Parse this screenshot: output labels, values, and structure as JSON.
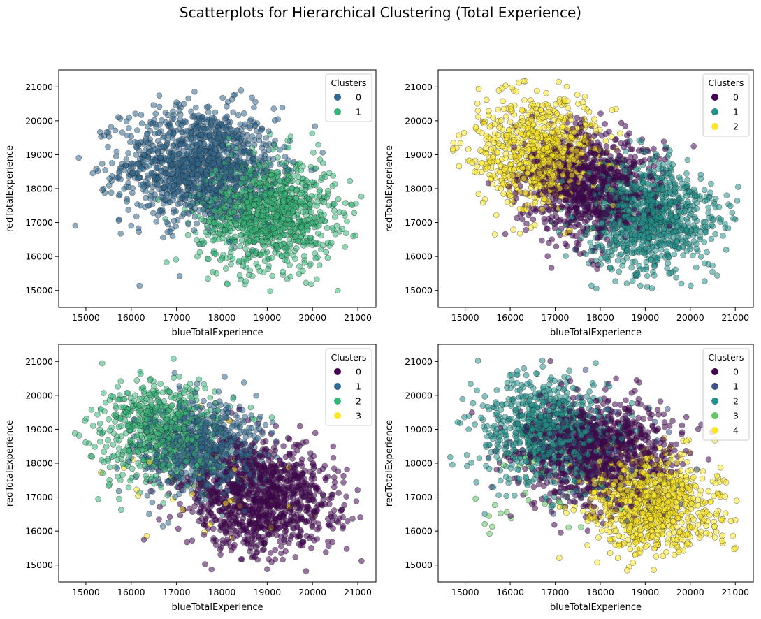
{
  "figure": {
    "title": "Scatterplots for Hierarchical Clustering (Total Experience)"
  },
  "chart_data": [
    {
      "type": "scatter",
      "xlabel": "blueTotalExperience",
      "ylabel": "redTotalExperience",
      "xlim": [
        14400,
        21400
      ],
      "ylim": [
        14500,
        21500
      ],
      "xticks": [
        15000,
        16000,
        17000,
        18000,
        19000,
        20000,
        21000
      ],
      "yticks": [
        15000,
        16000,
        17000,
        18000,
        19000,
        20000,
        21000
      ],
      "legend": {
        "title": "Clusters",
        "placement": "top-right"
      },
      "series": [
        {
          "name": "0",
          "color": "#31688e",
          "center": [
            17500,
            18700
          ],
          "spread": [
            850,
            850
          ],
          "count": 1300
        },
        {
          "name": "1",
          "color": "#35b779",
          "center": [
            19000,
            17300
          ],
          "spread": [
            750,
            800
          ],
          "count": 1100
        }
      ]
    },
    {
      "type": "scatter",
      "xlabel": "blueTotalExperience",
      "ylabel": "redTotalExperience",
      "xlim": [
        14400,
        21400
      ],
      "ylim": [
        14500,
        21500
      ],
      "xticks": [
        15000,
        16000,
        17000,
        18000,
        19000,
        20000,
        21000
      ],
      "yticks": [
        15000,
        16000,
        17000,
        18000,
        19000,
        20000,
        21000
      ],
      "legend": {
        "title": "Clusters",
        "placement": "top-right"
      },
      "series": [
        {
          "name": "0",
          "color": "#440154",
          "center": [
            17700,
            18100
          ],
          "spread": [
            700,
            800
          ],
          "count": 900
        },
        {
          "name": "1",
          "color": "#21918c",
          "center": [
            19100,
            17200
          ],
          "spread": [
            700,
            800
          ],
          "count": 1000
        },
        {
          "name": "2",
          "color": "#fde725",
          "center": [
            16600,
            19100
          ],
          "spread": [
            700,
            800
          ],
          "count": 800
        }
      ]
    },
    {
      "type": "scatter",
      "xlabel": "blueTotalExperience",
      "ylabel": "redTotalExperience",
      "xlim": [
        14400,
        21400
      ],
      "ylim": [
        14500,
        21500
      ],
      "xticks": [
        15000,
        16000,
        17000,
        18000,
        19000,
        20000,
        21000
      ],
      "yticks": [
        15000,
        16000,
        17000,
        18000,
        19000,
        20000,
        21000
      ],
      "legend": {
        "title": "Clusters",
        "placement": "top-right"
      },
      "series": [
        {
          "name": "0",
          "color": "#440154",
          "center": [
            18900,
            17000
          ],
          "spread": [
            800,
            800
          ],
          "count": 1100
        },
        {
          "name": "1",
          "color": "#31688e",
          "center": [
            17600,
            18400
          ],
          "spread": [
            650,
            700
          ],
          "count": 700
        },
        {
          "name": "2",
          "color": "#35b779",
          "center": [
            16600,
            19000
          ],
          "spread": [
            650,
            750
          ],
          "count": 650
        },
        {
          "name": "3",
          "color": "#fde725",
          "center": [
            17500,
            17500
          ],
          "spread": [
            1100,
            900
          ],
          "count": 40
        }
      ]
    },
    {
      "type": "scatter",
      "xlabel": "blueTotalExperience",
      "ylabel": "redTotalExperience",
      "xlim": [
        14400,
        21400
      ],
      "ylim": [
        14500,
        21500
      ],
      "xticks": [
        15000,
        16000,
        17000,
        18000,
        19000,
        20000,
        21000
      ],
      "yticks": [
        15000,
        16000,
        17000,
        18000,
        19000,
        20000,
        21000
      ],
      "legend": {
        "title": "Clusters",
        "placement": "top-right"
      },
      "series": [
        {
          "name": "0",
          "color": "#440154",
          "center": [
            17900,
            18300
          ],
          "spread": [
            800,
            800
          ],
          "count": 1000
        },
        {
          "name": "1",
          "color": "#3b528b",
          "center": [
            18000,
            18000
          ],
          "spread": [
            900,
            900
          ],
          "count": 60
        },
        {
          "name": "2",
          "color": "#21918c",
          "center": [
            16800,
            18900
          ],
          "spread": [
            750,
            800
          ],
          "count": 800
        },
        {
          "name": "3",
          "color": "#5ec962",
          "center": [
            16000,
            17000
          ],
          "spread": [
            800,
            900
          ],
          "count": 30
        },
        {
          "name": "4",
          "color": "#fde725",
          "center": [
            19200,
            16800
          ],
          "spread": [
            700,
            750
          ],
          "count": 900
        }
      ]
    }
  ]
}
